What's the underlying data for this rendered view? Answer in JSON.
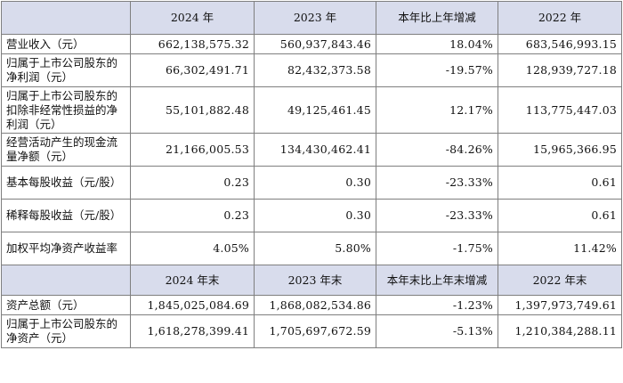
{
  "header1": {
    "label": "",
    "cols": [
      "2024 年",
      "2023 年",
      "本年比上年增减",
      "2022 年"
    ]
  },
  "rows1": [
    {
      "label": "营业收入（元）",
      "values": [
        "662,138,575.32",
        "560,937,843.46",
        "18.04%",
        "683,546,993.15"
      ]
    },
    {
      "label": "归属于上市公司股东的净利润（元）",
      "values": [
        "66,302,491.71",
        "82,432,373.58",
        "-19.57%",
        "128,939,727.18"
      ]
    },
    {
      "label": "归属于上市公司股东的扣除非经常性损益的净利润（元）",
      "values": [
        "55,101,882.48",
        "49,125,461.45",
        "12.17%",
        "113,775,447.03"
      ]
    },
    {
      "label": "经营活动产生的现金流量净额（元）",
      "values": [
        "21,166,005.53",
        "134,430,462.41",
        "-84.26%",
        "15,965,366.95"
      ]
    },
    {
      "label": "基本每股收益（元/股）",
      "values": [
        "0.23",
        "0.30",
        "-23.33%",
        "0.61"
      ]
    },
    {
      "label": "稀释每股收益（元/股）",
      "values": [
        "0.23",
        "0.30",
        "-23.33%",
        "0.61"
      ]
    },
    {
      "label": "加权平均净资产收益率",
      "values": [
        "4.05%",
        "5.80%",
        "-1.75%",
        "11.42%"
      ]
    }
  ],
  "header2": {
    "label": "",
    "cols": [
      "2024 年末",
      "2023 年末",
      "本年末比上年末增减",
      "2022 年末"
    ]
  },
  "rows2": [
    {
      "label": "资产总额（元）",
      "values": [
        "1,845,025,084.69",
        "1,868,082,534.86",
        "-1.23%",
        "1,397,973,749.61"
      ]
    },
    {
      "label": "归属于上市公司股东的净资产（元）",
      "values": [
        "1,618,278,399.41",
        "1,705,697,672.59",
        "-5.13%",
        "1,210,384,288.11"
      ]
    }
  ],
  "colors": {
    "header_bg": "#d8dcec",
    "border": "#7f7f7f"
  }
}
